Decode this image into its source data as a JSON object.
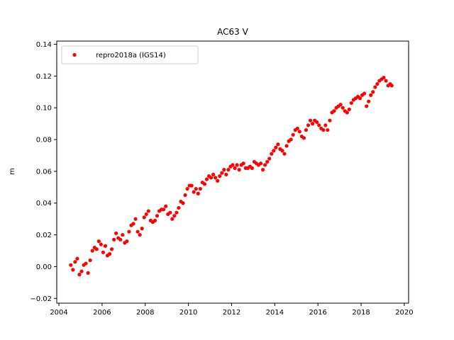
{
  "chart_data": {
    "type": "scatter",
    "title": "AC63 V",
    "xlabel": "",
    "ylabel": "m",
    "xlim": [
      2003.9,
      2020.2
    ],
    "ylim": [
      -0.023,
      0.142
    ],
    "x_ticks": [
      2004,
      2006,
      2008,
      2010,
      2012,
      2014,
      2016,
      2018,
      2020
    ],
    "x_tick_labels": [
      "2004",
      "2006",
      "2008",
      "2010",
      "2012",
      "2014",
      "2016",
      "2018",
      "2020"
    ],
    "y_ticks": [
      -0.02,
      0.0,
      0.02,
      0.04,
      0.06,
      0.08,
      0.1,
      0.12,
      0.14
    ],
    "y_tick_labels": [
      "−0.02",
      "0.00",
      "0.02",
      "0.04",
      "0.06",
      "0.08",
      "0.10",
      "0.12",
      "0.14"
    ],
    "grid": false,
    "legend_position": "top-left",
    "series": [
      {
        "name": "repro2018a (IGS14)",
        "color": "#ff0000",
        "marker": "circle",
        "x": [
          2004.55,
          2004.65,
          2004.75,
          2004.85,
          2004.95,
          2005.05,
          2005.15,
          2005.25,
          2005.35,
          2005.45,
          2005.55,
          2005.65,
          2005.75,
          2005.85,
          2005.95,
          2006.05,
          2006.15,
          2006.25,
          2006.35,
          2006.45,
          2006.55,
          2006.65,
          2006.75,
          2006.85,
          2006.95,
          2007.05,
          2007.15,
          2007.25,
          2007.35,
          2007.45,
          2007.55,
          2007.65,
          2007.75,
          2007.85,
          2007.95,
          2008.05,
          2008.15,
          2008.25,
          2008.35,
          2008.45,
          2008.55,
          2008.65,
          2008.75,
          2008.85,
          2008.95,
          2009.05,
          2009.15,
          2009.25,
          2009.35,
          2009.45,
          2009.55,
          2009.65,
          2009.75,
          2009.85,
          2009.95,
          2010.05,
          2010.15,
          2010.25,
          2010.35,
          2010.45,
          2010.55,
          2010.65,
          2010.75,
          2010.85,
          2010.95,
          2011.05,
          2011.15,
          2011.25,
          2011.35,
          2011.45,
          2011.55,
          2011.65,
          2011.75,
          2011.85,
          2011.95,
          2012.05,
          2012.15,
          2012.25,
          2012.35,
          2012.45,
          2012.55,
          2012.65,
          2012.75,
          2012.85,
          2012.95,
          2013.05,
          2013.15,
          2013.25,
          2013.35,
          2013.45,
          2013.55,
          2013.65,
          2013.75,
          2013.85,
          2013.95,
          2014.05,
          2014.15,
          2014.25,
          2014.35,
          2014.45,
          2014.55,
          2014.65,
          2014.75,
          2014.85,
          2014.95,
          2015.05,
          2015.15,
          2015.25,
          2015.35,
          2015.45,
          2015.55,
          2015.65,
          2015.75,
          2015.85,
          2015.95,
          2016.05,
          2016.15,
          2016.25,
          2016.35,
          2016.45,
          2016.55,
          2016.65,
          2016.75,
          2016.85,
          2016.95,
          2017.05,
          2017.15,
          2017.25,
          2017.35,
          2017.45,
          2017.55,
          2017.65,
          2017.75,
          2017.85,
          2017.95,
          2018.05,
          2018.15,
          2018.25,
          2018.35,
          2018.45,
          2018.55,
          2018.65,
          2018.75,
          2018.85,
          2018.95,
          2019.05,
          2019.15,
          2019.25,
          2019.35,
          2019.42
        ],
        "y": [
          0.001,
          -0.002,
          0.003,
          0.005,
          -0.005,
          -0.003,
          0.001,
          0.002,
          -0.004,
          0.004,
          0.01,
          0.012,
          0.011,
          0.016,
          0.014,
          0.009,
          0.013,
          0.007,
          0.008,
          0.011,
          0.017,
          0.021,
          0.018,
          0.017,
          0.02,
          0.015,
          0.016,
          0.022,
          0.026,
          0.027,
          0.03,
          0.022,
          0.02,
          0.024,
          0.031,
          0.033,
          0.035,
          0.029,
          0.028,
          0.029,
          0.032,
          0.035,
          0.036,
          0.036,
          0.038,
          0.033,
          0.034,
          0.03,
          0.032,
          0.034,
          0.037,
          0.041,
          0.04,
          0.045,
          0.049,
          0.051,
          0.051,
          0.047,
          0.049,
          0.046,
          0.049,
          0.053,
          0.052,
          0.055,
          0.057,
          0.056,
          0.058,
          0.056,
          0.054,
          0.057,
          0.059,
          0.061,
          0.058,
          0.061,
          0.063,
          0.064,
          0.062,
          0.064,
          0.061,
          0.064,
          0.065,
          0.062,
          0.062,
          0.063,
          0.062,
          0.066,
          0.065,
          0.064,
          0.065,
          0.061,
          0.064,
          0.066,
          0.068,
          0.071,
          0.073,
          0.075,
          0.077,
          0.074,
          0.073,
          0.071,
          0.076,
          0.079,
          0.08,
          0.083,
          0.086,
          0.087,
          0.085,
          0.082,
          0.081,
          0.086,
          0.089,
          0.092,
          0.09,
          0.092,
          0.091,
          0.089,
          0.087,
          0.086,
          0.089,
          0.086,
          0.092,
          0.097,
          0.098,
          0.1,
          0.101,
          0.102,
          0.1,
          0.098,
          0.097,
          0.099,
          0.103,
          0.105,
          0.106,
          0.107,
          0.106,
          0.108,
          0.109,
          0.101,
          0.104,
          0.108,
          0.11,
          0.113,
          0.115,
          0.117,
          0.118,
          0.119,
          0.117,
          0.114,
          0.115,
          0.114
        ]
      }
    ]
  }
}
